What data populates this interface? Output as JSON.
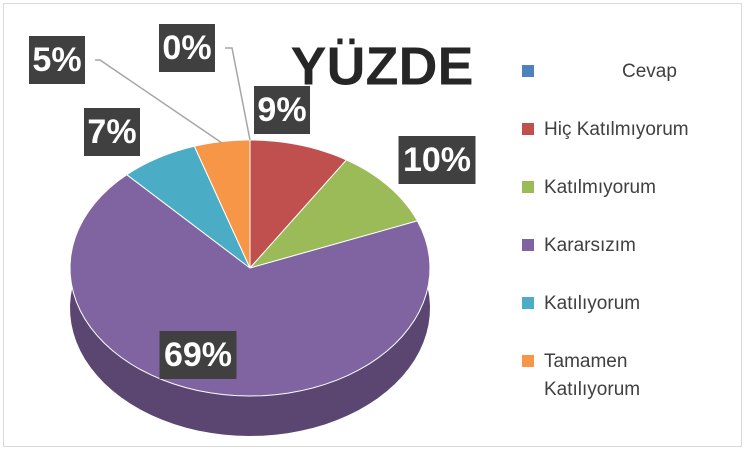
{
  "chart_data": {
    "type": "pie",
    "title": "YÜZDE",
    "categories": [
      "Cevap",
      "Hiç Katılmıyorum",
      "Katılmıyorum",
      "Kararsızım",
      "Katılıyorum",
      "Tamamen Katılıyorum"
    ],
    "values": [
      0,
      9,
      10,
      69,
      7,
      5
    ],
    "value_labels": [
      "0%",
      "9%",
      "10%",
      "69%",
      "7%",
      "5%"
    ],
    "colors": [
      "#4f81bd",
      "#c0504d",
      "#9bbb59",
      "#8064a2",
      "#4bacc6",
      "#f79646"
    ],
    "legend": "right"
  }
}
